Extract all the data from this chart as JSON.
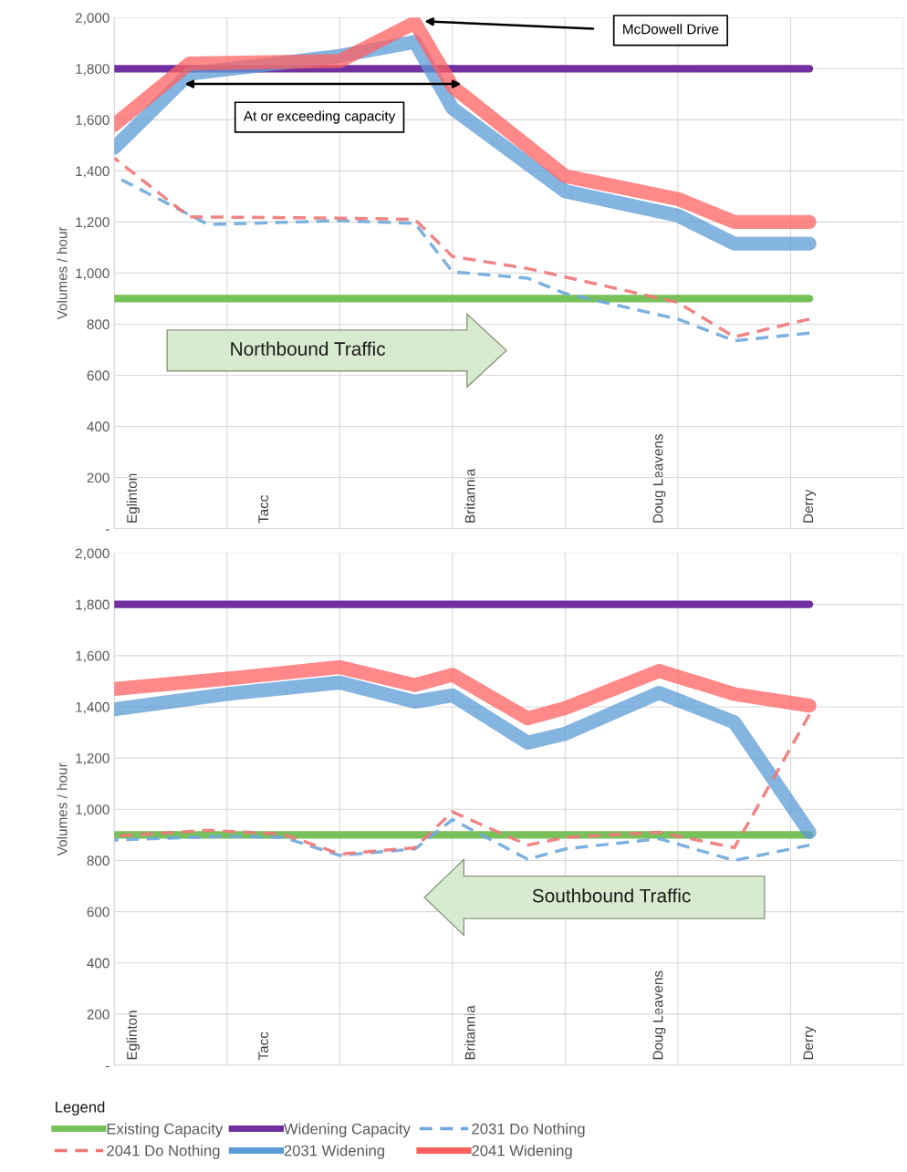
{
  "chart_data": [
    {
      "type": "line",
      "ylabel": "Volumes / hour",
      "categories": [
        null,
        "Eglinton",
        null,
        null,
        null,
        null,
        null,
        null,
        "Tacc",
        null,
        null,
        null,
        null,
        null,
        null,
        null,
        null,
        null,
        null,
        "Britannia",
        null,
        null,
        null,
        null,
        null,
        null,
        null,
        null,
        null,
        "Doug Leavens",
        null,
        null,
        null,
        null,
        null,
        null,
        null,
        "Derry",
        null,
        null,
        null,
        null,
        null
      ],
      "ylim": [
        0,
        2000
      ],
      "yticks": [
        {
          "value": 0,
          "label": "-"
        },
        {
          "value": 200,
          "label": "200"
        },
        {
          "value": 400,
          "label": "400"
        },
        {
          "value": 600,
          "label": "600"
        },
        {
          "value": 800,
          "label": "800"
        },
        {
          "value": 1000,
          "label": "1,000"
        },
        {
          "value": 1200,
          "label": "1,200"
        },
        {
          "value": 1400,
          "label": "1,400"
        },
        {
          "value": 1600,
          "label": "1,600"
        },
        {
          "value": 1800,
          "label": "1,800"
        },
        {
          "value": 2000,
          "label": "2,000"
        }
      ],
      "grid": true,
      "legend": "bottom",
      "legend_title": "Legend",
      "marker": "none",
      "series": [
        {
          "name": "Existing Capacity",
          "color": "#77c15a",
          "line_style": "solid",
          "values": [
            900,
            null,
            null,
            null,
            null,
            null,
            null,
            null,
            null,
            null,
            null,
            null,
            null,
            null,
            null,
            null,
            null,
            null,
            null,
            null,
            null,
            null,
            null,
            null,
            null,
            null,
            null,
            null,
            null,
            null,
            null,
            null,
            null,
            null,
            null,
            null,
            null,
            900,
            null,
            null,
            null,
            null,
            null
          ]
        },
        {
          "name": "Widening Capacity",
          "color": "#7030a0",
          "line_style": "solid",
          "values": [
            1800,
            null,
            null,
            null,
            null,
            null,
            null,
            null,
            null,
            null,
            null,
            null,
            null,
            null,
            null,
            null,
            null,
            null,
            null,
            null,
            null,
            null,
            null,
            null,
            null,
            null,
            null,
            null,
            null,
            null,
            null,
            null,
            null,
            null,
            null,
            null,
            null,
            1800,
            null,
            null,
            null,
            null,
            null
          ]
        },
        {
          "name": "2031 Do Nothing",
          "color": "#6fa8dc",
          "line_style": "dashed",
          "values": [
            1380,
            null,
            null,
            null,
            null,
            1190,
            null,
            null,
            null,
            null,
            null,
            null,
            1205,
            null,
            null,
            null,
            1195,
            null,
            1005,
            null,
            null,
            null,
            980,
            null,
            920,
            null,
            null,
            null,
            null,
            null,
            820,
            null,
            null,
            735,
            null,
            null,
            null,
            765,
            null,
            null,
            null,
            null,
            null
          ]
        },
        {
          "name": "2041 Do Nothing",
          "color": "#f07878",
          "line_style": "dashed",
          "values": [
            1450,
            null,
            null,
            null,
            1220,
            null,
            null,
            null,
            null,
            null,
            null,
            null,
            1215,
            null,
            null,
            null,
            1210,
            null,
            1065,
            null,
            null,
            null,
            1018,
            null,
            null,
            null,
            null,
            null,
            null,
            null,
            885,
            null,
            null,
            750,
            null,
            null,
            null,
            820,
            null,
            null,
            null,
            null,
            null
          ]
        },
        {
          "name": "2031 Widening",
          "color": "#5b9bd5",
          "line_style": "solid",
          "values": [
            1490,
            null,
            null,
            null,
            1780,
            null,
            null,
            null,
            null,
            null,
            null,
            null,
            1850,
            null,
            null,
            null,
            1905,
            null,
            1645,
            null,
            null,
            null,
            null,
            null,
            1320,
            null,
            null,
            null,
            null,
            null,
            1225,
            null,
            null,
            1115,
            null,
            null,
            null,
            1115,
            null,
            null,
            null,
            null,
            null
          ]
        },
        {
          "name": "2041 Widening",
          "color": "#ff6161",
          "line_style": "solid",
          "values": [
            1580,
            null,
            null,
            null,
            1820,
            null,
            null,
            null,
            null,
            null,
            null,
            null,
            1830,
            null,
            null,
            null,
            1980,
            null,
            1730,
            null,
            null,
            null,
            null,
            null,
            1380,
            null,
            null,
            null,
            null,
            null,
            1290,
            null,
            null,
            1200,
            null,
            null,
            null,
            1200,
            null,
            null,
            null,
            null,
            null
          ]
        }
      ],
      "annotations": [
        "McDowell Drive",
        "At or exceeding capacity",
        "Northbound Traffic"
      ]
    },
    {
      "type": "line",
      "ylabel": "Volumes / hour",
      "categories": [
        null,
        "Eglinton",
        null,
        null,
        null,
        null,
        null,
        null,
        "Tacc",
        null,
        null,
        null,
        null,
        null,
        null,
        null,
        null,
        null,
        null,
        "Britannia",
        null,
        null,
        null,
        null,
        null,
        null,
        null,
        null,
        null,
        "Doug Leavens",
        null,
        null,
        null,
        null,
        null,
        null,
        null,
        "Derry",
        null,
        null,
        null,
        null,
        null
      ],
      "ylim": [
        0,
        2000
      ],
      "yticks": [
        {
          "value": 0,
          "label": "-"
        },
        {
          "value": 200,
          "label": "200"
        },
        {
          "value": 400,
          "label": "400"
        },
        {
          "value": 600,
          "label": "600"
        },
        {
          "value": 800,
          "label": "800"
        },
        {
          "value": 1000,
          "label": "1,000"
        },
        {
          "value": 1200,
          "label": "1,200"
        },
        {
          "value": 1400,
          "label": "1,400"
        },
        {
          "value": 1600,
          "label": "1,600"
        },
        {
          "value": 1800,
          "label": "1,800"
        },
        {
          "value": 2000,
          "label": "2,000"
        }
      ],
      "grid": true,
      "legend": "bottom",
      "marker": "none",
      "series": [
        {
          "name": "Existing Capacity",
          "color": "#77c15a",
          "line_style": "solid",
          "values": [
            900,
            null,
            null,
            null,
            null,
            null,
            null,
            null,
            null,
            null,
            null,
            null,
            null,
            null,
            null,
            null,
            null,
            null,
            null,
            null,
            null,
            null,
            null,
            null,
            null,
            null,
            null,
            null,
            null,
            null,
            null,
            null,
            null,
            null,
            null,
            null,
            null,
            900,
            null,
            null,
            null,
            null,
            null
          ]
        },
        {
          "name": "Widening Capacity",
          "color": "#7030a0",
          "line_style": "solid",
          "values": [
            1800,
            null,
            null,
            null,
            null,
            null,
            null,
            null,
            null,
            null,
            null,
            null,
            null,
            null,
            null,
            null,
            null,
            null,
            null,
            null,
            null,
            null,
            null,
            null,
            null,
            null,
            null,
            null,
            null,
            null,
            null,
            null,
            null,
            null,
            null,
            null,
            null,
            1800,
            null,
            null,
            null,
            null,
            null
          ]
        },
        {
          "name": "2031 Do Nothing",
          "color": "#6fa8dc",
          "line_style": "dashed",
          "values": [
            880,
            null,
            null,
            null,
            null,
            null,
            895,
            null,
            null,
            890,
            null,
            null,
            820,
            null,
            null,
            null,
            845,
            null,
            960,
            null,
            null,
            null,
            805,
            null,
            845,
            null,
            null,
            null,
            null,
            885,
            null,
            null,
            null,
            800,
            null,
            null,
            null,
            860,
            null,
            null,
            null,
            null,
            null
          ]
        },
        {
          "name": "2041 Do Nothing",
          "color": "#f07878",
          "line_style": "dashed",
          "values": [
            895,
            null,
            null,
            null,
            null,
            918,
            null,
            null,
            null,
            903,
            null,
            null,
            825,
            null,
            null,
            null,
            850,
            null,
            990,
            null,
            null,
            null,
            860,
            null,
            890,
            null,
            null,
            null,
            null,
            910,
            null,
            null,
            null,
            850,
            null,
            null,
            null,
            1370,
            null,
            null,
            null,
            null,
            null
          ]
        },
        {
          "name": "2031 Widening",
          "color": "#5b9bd5",
          "line_style": "solid",
          "values": [
            1390,
            null,
            null,
            null,
            null,
            null,
            1450,
            null,
            null,
            null,
            null,
            null,
            1495,
            null,
            null,
            null,
            1420,
            null,
            1445,
            null,
            null,
            null,
            1260,
            null,
            1295,
            null,
            null,
            null,
            null,
            1455,
            null,
            null,
            null,
            1340,
            null,
            null,
            null,
            910,
            null,
            null,
            null,
            null,
            null
          ]
        },
        {
          "name": "2041 Widening",
          "color": "#ff6161",
          "line_style": "solid",
          "values": [
            1470,
            null,
            null,
            null,
            null,
            null,
            1510,
            null,
            null,
            null,
            null,
            null,
            1555,
            null,
            null,
            null,
            1485,
            null,
            1525,
            null,
            null,
            null,
            1355,
            null,
            1395,
            null,
            null,
            null,
            null,
            1540,
            null,
            null,
            null,
            1450,
            null,
            null,
            null,
            1405,
            null,
            null,
            null,
            null,
            null
          ]
        }
      ],
      "annotations": [
        "Southbound Traffic"
      ]
    }
  ]
}
